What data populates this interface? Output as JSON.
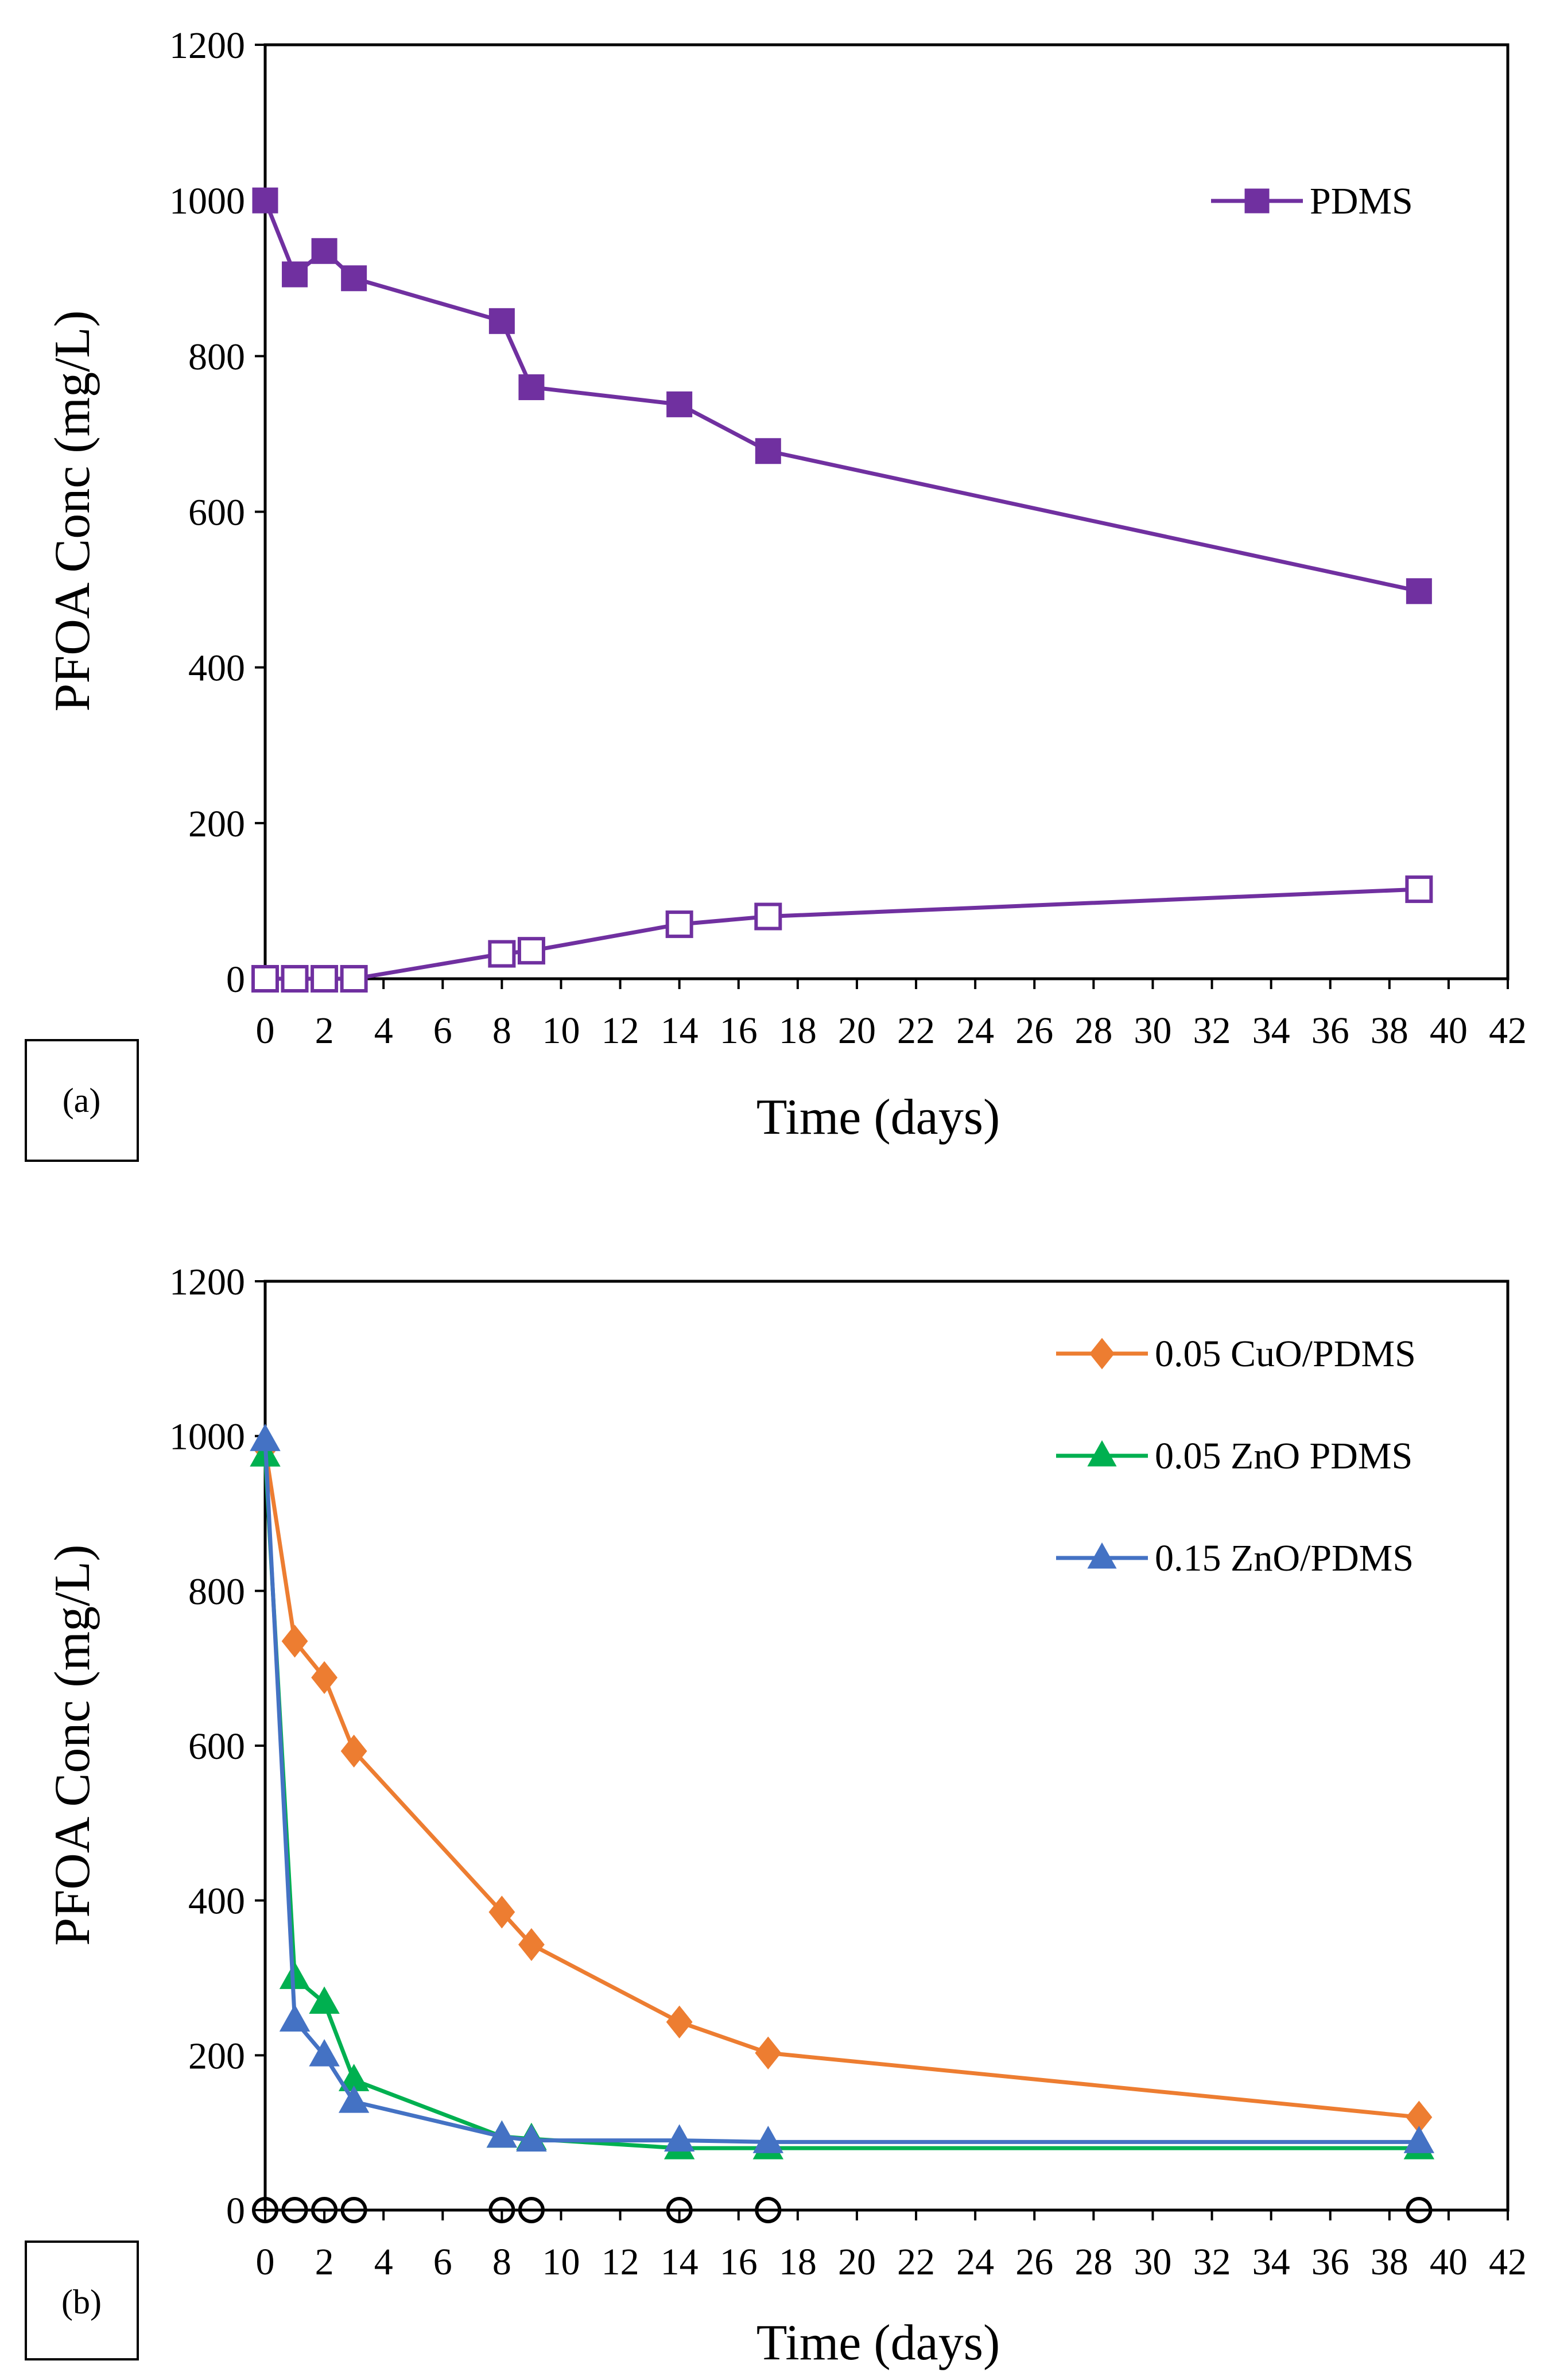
{
  "chart_data": [
    {
      "panel": "a",
      "type": "line",
      "title": "",
      "tag": "(a)",
      "xlabel": "Time (days)",
      "ylabel": "PFOA Conc (mg/L)",
      "xlim": [
        0,
        42
      ],
      "ylim": [
        0,
        1200
      ],
      "xticks": [
        "0",
        "2",
        "4",
        "6",
        "8",
        "10",
        "12",
        "14",
        "16",
        "18",
        "20",
        "22",
        "24",
        "26",
        "28",
        "30",
        "32",
        "34",
        "36",
        "38",
        "40",
        "42"
      ],
      "yticks": [
        "0",
        "200",
        "400",
        "600",
        "800",
        "1000",
        "1200"
      ],
      "legend_position": "top-right",
      "series": [
        {
          "name": "PDMS",
          "in_legend": true,
          "color": "#7030a0",
          "marker": "square",
          "filled": true,
          "x": [
            0,
            1,
            2,
            3,
            8,
            9,
            14,
            17,
            39
          ],
          "y": [
            1000,
            905,
            935,
            900,
            845,
            760,
            738,
            678,
            498
          ]
        },
        {
          "name": "PDMS (open markers)",
          "in_legend": false,
          "color": "#7030a0",
          "marker": "square",
          "filled": false,
          "x": [
            0,
            1,
            2,
            3,
            8,
            9,
            14,
            17,
            39
          ],
          "y": [
            0,
            0,
            0,
            0,
            32,
            36,
            70,
            80,
            115
          ]
        }
      ]
    },
    {
      "panel": "b",
      "type": "line",
      "title": "",
      "tag": "(b)",
      "xlabel": "Time (days)",
      "ylabel": "PFOA Conc (mg/L)",
      "xlim": [
        0,
        42
      ],
      "ylim": [
        0,
        1200
      ],
      "xticks": [
        "0",
        "2",
        "4",
        "6",
        "8",
        "10",
        "12",
        "14",
        "16",
        "18",
        "20",
        "22",
        "24",
        "26",
        "28",
        "30",
        "32",
        "34",
        "36",
        "38",
        "40",
        "42"
      ],
      "yticks": [
        "0",
        "200",
        "400",
        "600",
        "800",
        "1000",
        "1200"
      ],
      "legend_position": "top-right",
      "series": [
        {
          "name": "0.05 CuO/PDMS",
          "in_legend": true,
          "color": "#ed7d31",
          "marker": "diamond",
          "filled": true,
          "x": [
            0,
            1,
            2,
            3,
            8,
            9,
            14,
            17,
            39
          ],
          "y": [
            985,
            735,
            688,
            593,
            385,
            343,
            243,
            203,
            120
          ]
        },
        {
          "name": "0.05 ZnO PDMS",
          "in_legend": true,
          "color": "#00b050",
          "marker": "triangle",
          "filled": true,
          "x": [
            0,
            1,
            2,
            3,
            8,
            9,
            14,
            17,
            39
          ],
          "y": [
            975,
            300,
            268,
            168,
            95,
            92,
            80,
            80,
            80
          ]
        },
        {
          "name": "0.15 ZnO/PDMS",
          "in_legend": true,
          "color": "#4472c4",
          "marker": "triangle",
          "filled": true,
          "x": [
            0,
            1,
            2,
            3,
            8,
            9,
            14,
            17,
            39
          ],
          "y": [
            995,
            245,
            200,
            140,
            95,
            90,
            90,
            88,
            88
          ]
        },
        {
          "name": "open circles",
          "in_legend": false,
          "color": "#000000",
          "marker": "circle",
          "filled": false,
          "x": [
            0,
            1,
            2,
            3,
            8,
            9,
            14,
            17,
            39
          ],
          "y": [
            0,
            0,
            0,
            0,
            0,
            0,
            0,
            0,
            0
          ]
        }
      ]
    }
  ]
}
